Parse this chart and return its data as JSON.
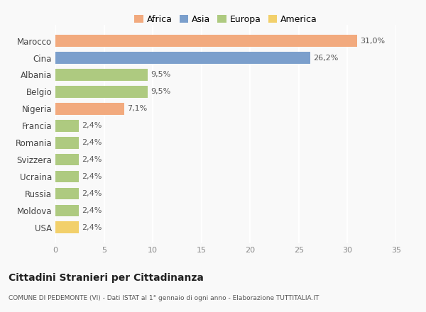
{
  "countries": [
    "Marocco",
    "Cina",
    "Albania",
    "Belgio",
    "Nigeria",
    "Francia",
    "Romania",
    "Svizzera",
    "Ucraina",
    "Russia",
    "Moldova",
    "USA"
  ],
  "values": [
    31.0,
    26.2,
    9.5,
    9.5,
    7.1,
    2.4,
    2.4,
    2.4,
    2.4,
    2.4,
    2.4,
    2.4
  ],
  "labels": [
    "31,0%",
    "26,2%",
    "9,5%",
    "9,5%",
    "7,1%",
    "2,4%",
    "2,4%",
    "2,4%",
    "2,4%",
    "2,4%",
    "2,4%",
    "2,4%"
  ],
  "colors": [
    "#F2AA7E",
    "#7B9FCC",
    "#AECA80",
    "#AECA80",
    "#F2AA7E",
    "#AECA80",
    "#AECA80",
    "#AECA80",
    "#AECA80",
    "#AECA80",
    "#AECA80",
    "#F2D06B"
  ],
  "legend_labels": [
    "Africa",
    "Asia",
    "Europa",
    "America"
  ],
  "legend_colors": [
    "#F2AA7E",
    "#7B9FCC",
    "#AECA80",
    "#F2D06B"
  ],
  "title": "Cittadini Stranieri per Cittadinanza",
  "subtitle": "COMUNE DI PEDEMONTE (VI) - Dati ISTAT al 1° gennaio di ogni anno - Elaborazione TUTTITALIA.IT",
  "xlim": [
    0,
    35
  ],
  "xticks": [
    0,
    5,
    10,
    15,
    20,
    25,
    30,
    35
  ],
  "background_color": "#f9f9f9",
  "grid_color": "#ffffff",
  "bar_height": 0.7
}
